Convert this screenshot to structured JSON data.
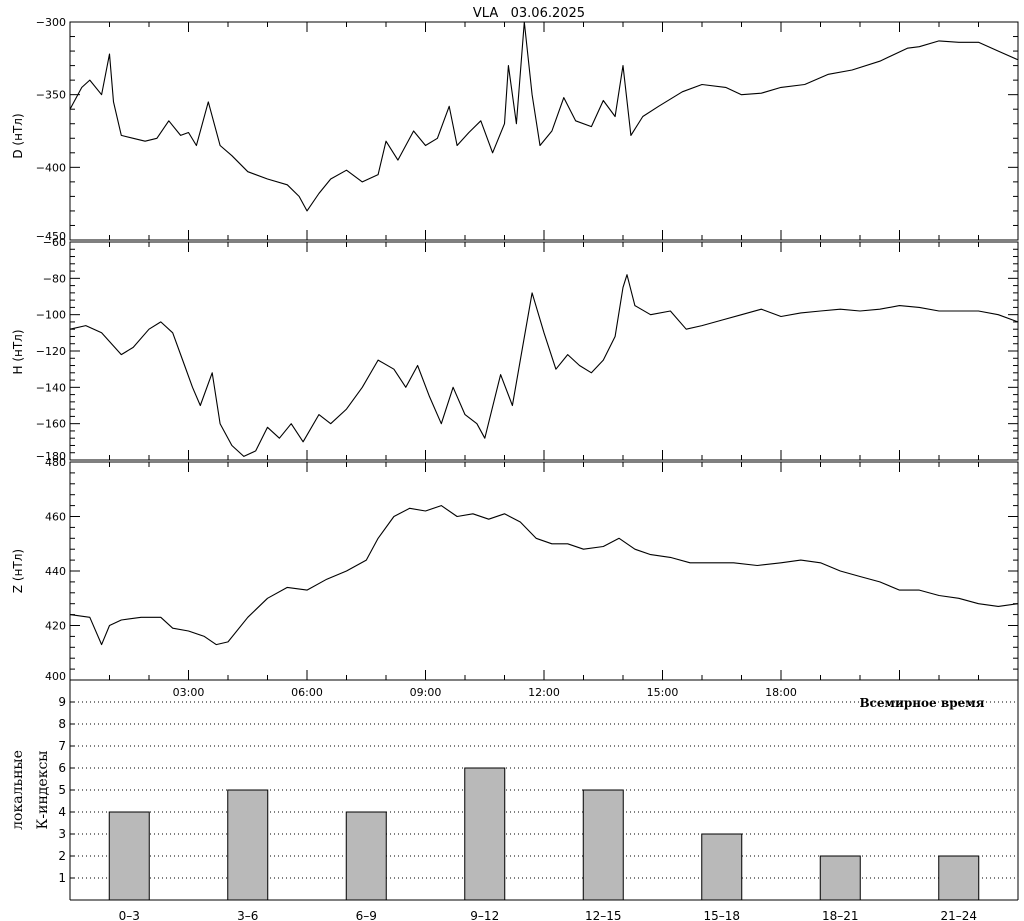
{
  "title": "VLA   03.06.2025",
  "chart_data": [
    {
      "type": "line",
      "panel": "D",
      "ylabel": "D (нТл)",
      "ylim": [
        -450,
        -300
      ],
      "yticks": [
        -450,
        -400,
        -350,
        -300
      ],
      "x_unit": "hours UT",
      "xlim": [
        0,
        24
      ],
      "x": [
        0,
        0.3,
        0.5,
        0.8,
        1.0,
        1.1,
        1.3,
        1.6,
        1.9,
        2.2,
        2.5,
        2.8,
        3.0,
        3.2,
        3.5,
        3.8,
        4.1,
        4.5,
        5.0,
        5.5,
        5.8,
        6.0,
        6.3,
        6.6,
        7.0,
        7.4,
        7.8,
        8.0,
        8.3,
        8.7,
        9.0,
        9.3,
        9.6,
        9.8,
        10.1,
        10.4,
        10.7,
        11.0,
        11.1,
        11.3,
        11.5,
        11.7,
        11.9,
        12.2,
        12.5,
        12.8,
        13.2,
        13.5,
        13.8,
        14.0,
        14.2,
        14.5,
        14.9,
        15.5,
        16.0,
        16.6,
        17.0,
        17.5,
        18.0,
        18.6,
        19.2,
        19.8,
        20.5,
        21.2,
        21.5,
        22.0,
        22.5,
        23.0,
        23.5,
        24.0
      ],
      "values": [
        -360,
        -345,
        -340,
        -350,
        -322,
        -355,
        -378,
        -380,
        -382,
        -380,
        -368,
        -378,
        -376,
        -385,
        -355,
        -385,
        -392,
        -403,
        -408,
        -412,
        -420,
        -430,
        -418,
        -408,
        -402,
        -410,
        -405,
        -382,
        -395,
        -375,
        -385,
        -380,
        -358,
        -385,
        -376,
        -368,
        -390,
        -370,
        -330,
        -370,
        -300,
        -350,
        -385,
        -375,
        -352,
        -368,
        -372,
        -354,
        -365,
        -330,
        -378,
        -365,
        -358,
        -348,
        -343,
        -345,
        -350,
        -349,
        -345,
        -343,
        -336,
        -333,
        -327,
        -318,
        -317,
        -313,
        -314,
        -314,
        -320,
        -326
      ]
    },
    {
      "type": "line",
      "panel": "H",
      "ylabel": "H (нТл)",
      "ylim": [
        -180,
        -60
      ],
      "yticks": [
        -180,
        -160,
        -140,
        -120,
        -100,
        -80,
        -60
      ],
      "x_unit": "hours UT",
      "xlim": [
        0,
        24
      ],
      "x": [
        0,
        0.4,
        0.8,
        1.3,
        1.6,
        2.0,
        2.3,
        2.6,
        2.9,
        3.1,
        3.3,
        3.6,
        3.8,
        4.1,
        4.4,
        4.7,
        5.0,
        5.3,
        5.6,
        5.9,
        6.3,
        6.6,
        7.0,
        7.4,
        7.8,
        8.2,
        8.5,
        8.8,
        9.1,
        9.4,
        9.7,
        10.0,
        10.3,
        10.5,
        10.9,
        11.2,
        11.4,
        11.7,
        12.0,
        12.3,
        12.6,
        12.9,
        13.2,
        13.5,
        13.8,
        14.0,
        14.1,
        14.3,
        14.7,
        15.2,
        15.6,
        16.0,
        16.5,
        17.0,
        17.5,
        18.0,
        18.5,
        19.0,
        19.5,
        20.0,
        20.5,
        21.0,
        21.5,
        22.0,
        22.5,
        23.0,
        23.5,
        24.0
      ],
      "values": [
        -108,
        -106,
        -110,
        -122,
        -118,
        -108,
        -104,
        -110,
        -128,
        -140,
        -150,
        -132,
        -160,
        -172,
        -178,
        -175,
        -162,
        -168,
        -160,
        -170,
        -155,
        -160,
        -152,
        -140,
        -125,
        -130,
        -140,
        -128,
        -145,
        -160,
        -140,
        -155,
        -160,
        -168,
        -133,
        -150,
        -125,
        -88,
        -110,
        -130,
        -122,
        -128,
        -132,
        -125,
        -112,
        -85,
        -78,
        -95,
        -100,
        -98,
        -108,
        -106,
        -103,
        -100,
        -97,
        -101,
        -99,
        -98,
        -97,
        -98,
        -97,
        -95,
        -96,
        -98,
        -98,
        -98,
        -100,
        -104
      ]
    },
    {
      "type": "line",
      "panel": "Z",
      "ylabel": "Z (нТл)",
      "ylim": [
        400,
        480
      ],
      "yticks": [
        400,
        420,
        440,
        460,
        480
      ],
      "x_unit": "hours UT",
      "xlim": [
        0,
        24
      ],
      "xticks": [
        "03:00",
        "06:00",
        "09:00",
        "12:00",
        "15:00",
        "18:00"
      ],
      "xlabel": "Всемирное время",
      "x": [
        0,
        0.5,
        0.8,
        1.0,
        1.3,
        1.8,
        2.3,
        2.6,
        3.0,
        3.4,
        3.7,
        4.0,
        4.5,
        5.0,
        5.5,
        6.0,
        6.5,
        7.0,
        7.5,
        7.8,
        8.2,
        8.6,
        9.0,
        9.4,
        9.8,
        10.2,
        10.6,
        11.0,
        11.4,
        11.8,
        12.2,
        12.6,
        13.0,
        13.5,
        13.9,
        14.3,
        14.7,
        15.2,
        15.7,
        16.2,
        16.8,
        17.4,
        18.0,
        18.5,
        19.0,
        19.5,
        20.0,
        20.5,
        21.0,
        21.5,
        22.0,
        22.5,
        23.0,
        23.5,
        24.0
      ],
      "values": [
        424,
        423,
        413,
        420,
        422,
        423,
        423,
        419,
        418,
        416,
        413,
        414,
        423,
        430,
        434,
        433,
        437,
        440,
        444,
        452,
        460,
        463,
        462,
        464,
        460,
        461,
        459,
        461,
        458,
        452,
        450,
        450,
        448,
        449,
        452,
        448,
        446,
        445,
        443,
        443,
        443,
        442,
        443,
        444,
        443,
        440,
        438,
        436,
        433,
        433,
        431,
        430,
        428,
        427,
        428
      ]
    },
    {
      "type": "bar",
      "panel": "K",
      "ylabel": "К-индексы",
      "ylabel2": "локальные",
      "ylim": [
        0,
        10
      ],
      "yticks": [
        1,
        2,
        3,
        4,
        5,
        6,
        7,
        8,
        9
      ],
      "categories": [
        "0-3",
        "3-6",
        "6-9",
        "9-12",
        "12-15",
        "15-18",
        "18-21",
        "21-24"
      ],
      "values": [
        4,
        5,
        4,
        6,
        5,
        3,
        2,
        2
      ],
      "grid": true,
      "bar_color": "#b9b9b9"
    }
  ]
}
